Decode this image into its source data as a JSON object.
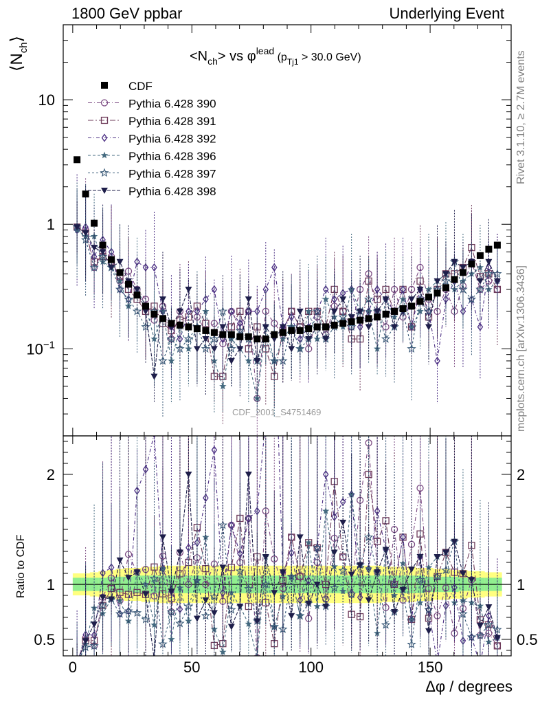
{
  "header": {
    "left": "1800 GeV ppbar",
    "right": "Underlying Event"
  },
  "side_labels": {
    "upper": "Rivet 3.1.10, ≥ 2.7M events",
    "lower": "mcplots.cern.ch [arXiv:1306.3436]"
  },
  "watermark": "CDF_2001_S4751469",
  "chart_data": {
    "type": "scatter",
    "title": "<N_ch> vs φ^lead (p_Tj1 > 30.0 GeV)",
    "xlabel": "Δφ / degrees",
    "ylabel": "⟨N_ch⟩",
    "ratio_ylabel": "Ratio to CDF",
    "xlim": [
      -4,
      184
    ],
    "ylim": [
      0.02,
      40
    ],
    "yscale": "log",
    "ratio_ylim": [
      0.35,
      2.35
    ],
    "x_ticks": [
      0,
      50,
      100,
      150
    ],
    "y_tick_labels": [
      "10^−1",
      "1",
      "10"
    ],
    "ratio_ticks": [
      0.5,
      1,
      2
    ],
    "legend_position": "top-left",
    "colors": {
      "CDF": "#000000",
      "band_inner": "#90ee90",
      "band_outer": "#ffff80"
    },
    "x": [
      1.8,
      5.4,
      9.0,
      12.6,
      16.2,
      19.8,
      23.4,
      27.0,
      30.6,
      34.2,
      37.8,
      41.4,
      45.0,
      48.6,
      52.2,
      55.8,
      59.4,
      63.0,
      66.6,
      70.2,
      73.8,
      77.4,
      81.0,
      84.6,
      88.2,
      91.8,
      95.4,
      99.0,
      102.6,
      106.2,
      109.8,
      113.4,
      117.0,
      120.6,
      124.2,
      127.8,
      131.4,
      135.0,
      138.6,
      142.2,
      145.8,
      149.4,
      153.0,
      156.6,
      160.2,
      163.8,
      167.4,
      171.0,
      174.6,
      178.2
    ],
    "series": [
      {
        "name": "CDF",
        "marker": "square-filled",
        "color": "#000000",
        "values": [
          3.3,
          1.75,
          1.02,
          0.68,
          0.52,
          0.41,
          0.33,
          0.27,
          0.22,
          0.19,
          0.175,
          0.16,
          0.155,
          0.15,
          0.145,
          0.14,
          0.135,
          0.13,
          0.13,
          0.125,
          0.125,
          0.12,
          0.12,
          0.13,
          0.135,
          0.14,
          0.14,
          0.145,
          0.15,
          0.15,
          0.155,
          0.16,
          0.165,
          0.17,
          0.175,
          0.18,
          0.19,
          0.2,
          0.21,
          0.22,
          0.24,
          0.26,
          0.28,
          0.31,
          0.36,
          0.41,
          0.48,
          0.56,
          0.63,
          0.68
        ]
      },
      {
        "name": "Pythia 6.428 390",
        "marker": "circle-open",
        "color": "#7b4a82",
        "values": [
          0.95,
          0.9,
          0.45,
          0.6,
          0.55,
          0.35,
          0.42,
          0.3,
          0.25,
          0.17,
          0.22,
          0.12,
          0.2,
          0.15,
          0.18,
          0.14,
          0.16,
          0.11,
          0.2,
          0.15,
          0.2,
          0.04,
          0.2,
          0.16,
          0.13,
          0.2,
          0.15,
          0.1,
          0.18,
          0.13,
          0.22,
          0.2,
          0.15,
          0.3,
          0.4,
          0.2,
          0.15,
          0.3,
          0.18,
          0.3,
          0.45,
          0.25,
          0.2,
          0.3,
          0.2,
          0.32,
          0.5,
          0.3,
          0.35,
          0.3
        ]
      },
      {
        "name": "Pythia 6.428 391",
        "marker": "square-open",
        "color": "#6e3b5a",
        "values": [
          0.95,
          0.85,
          0.5,
          0.55,
          0.5,
          0.38,
          0.3,
          0.25,
          0.2,
          0.22,
          0.16,
          0.14,
          0.17,
          0.18,
          0.22,
          0.16,
          0.06,
          0.06,
          0.15,
          0.2,
          0.1,
          0.15,
          0.1,
          0.06,
          0.14,
          0.2,
          0.15,
          0.2,
          0.2,
          0.15,
          0.3,
          0.2,
          0.12,
          0.12,
          0.35,
          0.25,
          0.3,
          0.2,
          0.3,
          0.15,
          0.35,
          0.18,
          0.3,
          0.4,
          0.4,
          0.45,
          0.65,
          0.38,
          0.4,
          0.3
        ]
      },
      {
        "name": "Pythia 6.428 392",
        "marker": "diamond-open",
        "color": "#4b2e83",
        "values": [
          0.9,
          0.95,
          0.55,
          0.75,
          0.6,
          0.3,
          0.25,
          0.5,
          0.45,
          0.45,
          0.2,
          0.15,
          0.12,
          0.2,
          0.2,
          0.25,
          0.3,
          0.12,
          0.2,
          0.16,
          0.2,
          0.2,
          0.3,
          0.45,
          0.15,
          0.18,
          0.12,
          0.15,
          0.2,
          0.3,
          0.25,
          0.28,
          0.3,
          0.15,
          0.2,
          0.3,
          0.25,
          0.2,
          0.3,
          0.15,
          0.3,
          0.2,
          0.08,
          0.25,
          0.35,
          0.2,
          0.25,
          0.15,
          0.45,
          0.35
        ]
      },
      {
        "name": "Pythia 6.428 396",
        "marker": "star-filled",
        "color": "#456b80",
        "values": [
          0.9,
          0.8,
          0.8,
          0.5,
          0.45,
          0.35,
          0.22,
          0.3,
          0.22,
          0.12,
          0.2,
          0.08,
          0.15,
          0.1,
          0.15,
          0.2,
          0.08,
          0.05,
          0.12,
          0.1,
          0.08,
          0.04,
          0.15,
          0.08,
          0.12,
          0.15,
          0.1,
          0.2,
          0.12,
          0.25,
          0.18,
          0.15,
          0.3,
          0.2,
          0.2,
          0.1,
          0.25,
          0.18,
          0.25,
          0.15,
          0.2,
          0.3,
          0.35,
          0.4,
          0.3,
          0.35,
          0.4,
          0.45,
          0.3,
          0.35
        ]
      },
      {
        "name": "Pythia 6.428 397",
        "marker": "star-open",
        "color": "#3a5a78",
        "values": [
          0.95,
          0.75,
          0.45,
          0.55,
          0.45,
          0.3,
          0.25,
          0.2,
          0.15,
          0.2,
          0.08,
          0.12,
          0.1,
          0.12,
          0.15,
          0.1,
          0.12,
          0.2,
          0.1,
          0.14,
          0.12,
          0.08,
          0.12,
          0.08,
          0.08,
          0.15,
          0.1,
          0.12,
          0.2,
          0.12,
          0.15,
          0.18,
          0.15,
          0.2,
          0.25,
          0.2,
          0.12,
          0.15,
          0.2,
          0.1,
          0.25,
          0.2,
          0.3,
          0.35,
          0.5,
          0.3,
          0.25,
          0.3,
          0.4,
          0.4
        ]
      },
      {
        "name": "Pythia 6.428 398",
        "marker": "triangle-down-filled",
        "color": "#1e1e4a",
        "values": [
          0.95,
          0.85,
          0.65,
          0.6,
          0.45,
          0.5,
          0.35,
          0.3,
          0.2,
          0.06,
          0.25,
          0.15,
          0.2,
          0.3,
          0.1,
          0.12,
          0.1,
          0.15,
          0.08,
          0.1,
          0.25,
          0.08,
          0.15,
          0.12,
          0.15,
          0.1,
          0.2,
          0.12,
          0.15,
          0.12,
          0.2,
          0.25,
          0.18,
          0.2,
          0.15,
          0.2,
          0.25,
          0.15,
          0.2,
          0.25,
          0.3,
          0.15,
          0.35,
          0.4,
          0.5,
          0.45,
          0.5,
          0.35,
          0.5,
          0.35
        ]
      }
    ],
    "ratio_band": {
      "inner_halfwidth": [
        0.06,
        0.06,
        0.06,
        0.06,
        0.07,
        0.07,
        0.07,
        0.08,
        0.08,
        0.08,
        0.08,
        0.08,
        0.08,
        0.08,
        0.08,
        0.08,
        0.08,
        0.08,
        0.08,
        0.08,
        0.08,
        0.08,
        0.08,
        0.08,
        0.08,
        0.08,
        0.08,
        0.08,
        0.08,
        0.08,
        0.08,
        0.08,
        0.08,
        0.08,
        0.08,
        0.08,
        0.08,
        0.08,
        0.08,
        0.08,
        0.08,
        0.07,
        0.07,
        0.07,
        0.07,
        0.06,
        0.06,
        0.06,
        0.06,
        0.06
      ],
      "outer_halfwidth": [
        0.1,
        0.1,
        0.11,
        0.12,
        0.13,
        0.14,
        0.15,
        0.15,
        0.16,
        0.16,
        0.17,
        0.17,
        0.17,
        0.17,
        0.17,
        0.17,
        0.17,
        0.17,
        0.17,
        0.17,
        0.17,
        0.17,
        0.17,
        0.17,
        0.17,
        0.17,
        0.17,
        0.17,
        0.17,
        0.17,
        0.17,
        0.17,
        0.17,
        0.17,
        0.17,
        0.17,
        0.16,
        0.16,
        0.16,
        0.16,
        0.15,
        0.15,
        0.14,
        0.14,
        0.13,
        0.13,
        0.12,
        0.12,
        0.11,
        0.11
      ]
    }
  }
}
